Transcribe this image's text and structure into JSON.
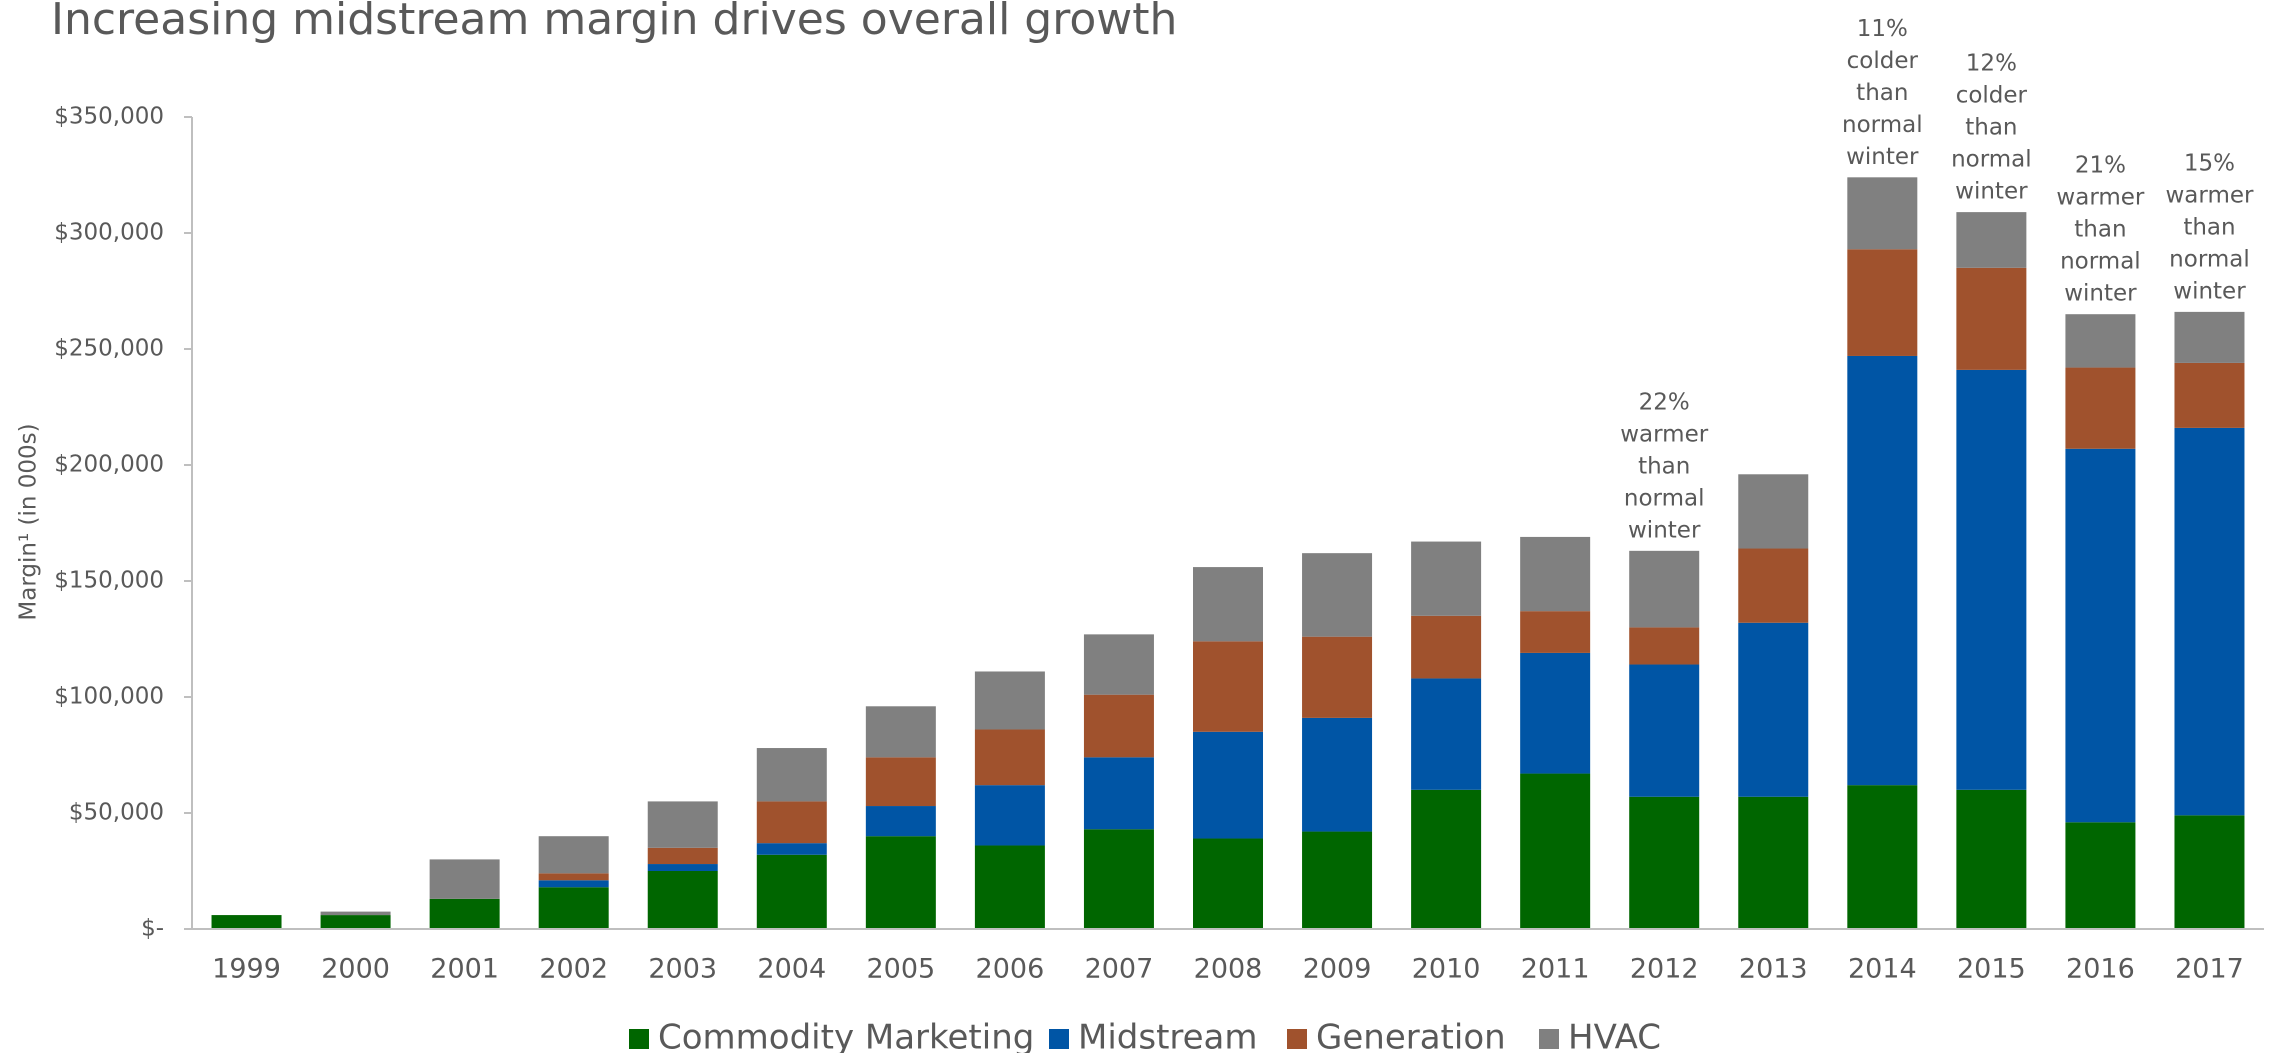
{
  "chart_data": {
    "type": "stacked_bar",
    "title": "Increasing midstream margin drives overall growth",
    "y_label": "Margin¹ (in 000s)",
    "categories": [
      "1999",
      "2000",
      "2001",
      "2002",
      "2003",
      "2004",
      "2005",
      "2006",
      "2007",
      "2008",
      "2009",
      "2010",
      "2011",
      "2012",
      "2013",
      "2014",
      "2015",
      "2016",
      "2017"
    ],
    "series": [
      {
        "name": "Commodity Marketing",
        "color": "#006600",
        "values": [
          6000,
          6000,
          13000,
          18000,
          25000,
          32000,
          40000,
          36000,
          43000,
          39000,
          42000,
          60000,
          67000,
          57000,
          57000,
          62000,
          60000,
          46000,
          49000
        ]
      },
      {
        "name": "Midstream",
        "color": "#0055a5",
        "values": [
          0,
          0,
          0,
          3000,
          3000,
          5000,
          13000,
          26000,
          31000,
          46000,
          49000,
          48000,
          52000,
          57000,
          75000,
          185000,
          181000,
          161000,
          167000
        ]
      },
      {
        "name": "Generation",
        "color": "#a0522d",
        "values": [
          0,
          0,
          0,
          3000,
          7000,
          18000,
          21000,
          24000,
          27000,
          39000,
          35000,
          27000,
          18000,
          16000,
          32000,
          46000,
          44000,
          35000,
          28000
        ]
      },
      {
        "name": "HVAC",
        "color": "#808080",
        "values": [
          0,
          1500,
          17000,
          16000,
          20000,
          23000,
          22000,
          25000,
          26000,
          32000,
          36000,
          32000,
          32000,
          33000,
          32000,
          31000,
          24000,
          23000,
          22000
        ]
      }
    ],
    "ylim": [
      0,
      350000
    ],
    "yticks": [
      {
        "value": 0,
        "label": "$-"
      },
      {
        "value": 50000,
        "label": "$50,000"
      },
      {
        "value": 100000,
        "label": "$100,000"
      },
      {
        "value": 150000,
        "label": "$150,000"
      },
      {
        "value": 200000,
        "label": "$200,000"
      },
      {
        "value": 250000,
        "label": "$250,000"
      },
      {
        "value": 300000,
        "label": "$300,000"
      },
      {
        "value": 350000,
        "label": "$350,000"
      }
    ],
    "annotations": [
      {
        "category": "2012",
        "text": [
          "22%",
          "warmer",
          "than",
          "normal",
          "winter"
        ]
      },
      {
        "category": "2014",
        "text": [
          "11%",
          "colder",
          "than",
          "normal",
          "winter"
        ]
      },
      {
        "category": "2015",
        "text": [
          "12%",
          "colder",
          "than",
          "normal",
          "winter"
        ]
      },
      {
        "category": "2016",
        "text": [
          "21%",
          "warmer",
          "than",
          "normal",
          "winter"
        ]
      },
      {
        "category": "2017",
        "text": [
          "15%",
          "warmer",
          "than",
          "normal",
          "winter"
        ]
      }
    ]
  }
}
